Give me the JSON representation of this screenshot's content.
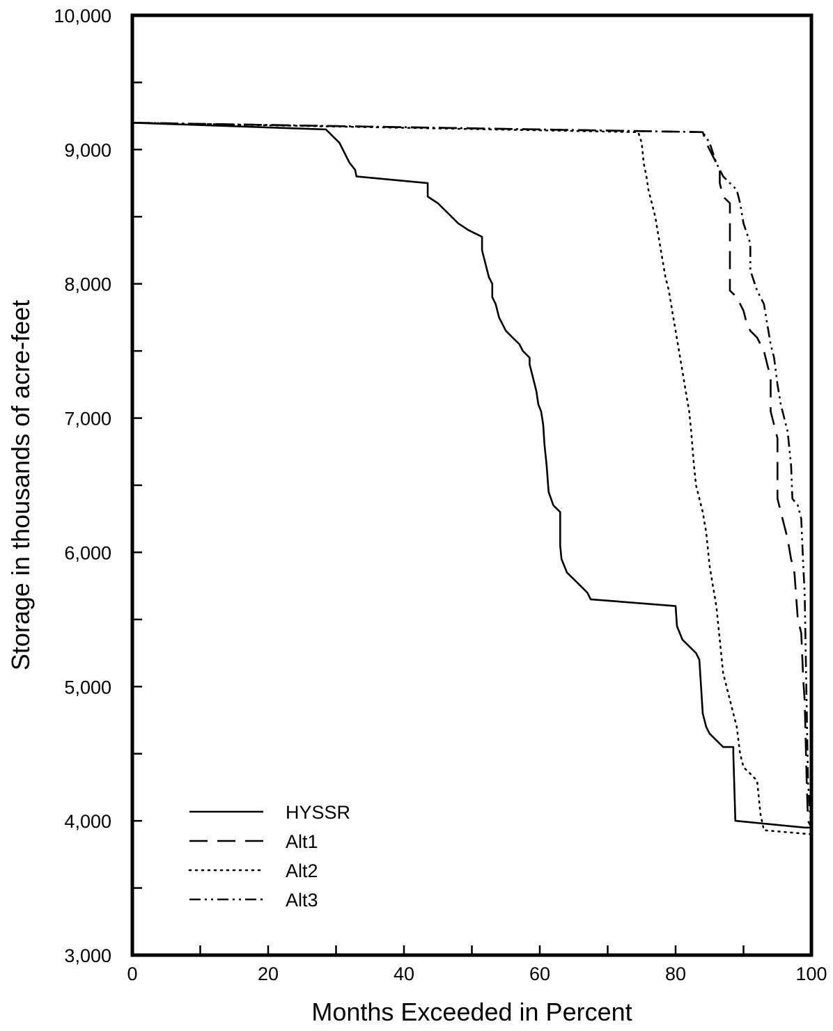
{
  "chart_data": {
    "type": "line",
    "title": "",
    "xlabel": "Months Exceeded in Percent",
    "ylabel": "Storage in thousands of acre-feet",
    "xlim": [
      0,
      100
    ],
    "ylim": [
      3000,
      10000
    ],
    "x_ticks": [
      0,
      20,
      40,
      60,
      80,
      100
    ],
    "x_tick_labels": [
      "0",
      "20",
      "40",
      "60",
      "80",
      "100"
    ],
    "x_minor_ticks": [
      10,
      30,
      50,
      70,
      90
    ],
    "y_ticks": [
      3000,
      4000,
      5000,
      6000,
      7000,
      8000,
      9000,
      10000
    ],
    "y_tick_labels": [
      "3,000",
      "4,000",
      "5,000",
      "6,000",
      "7,000",
      "8,000",
      "9,000",
      "10,000"
    ],
    "y_minor_ticks": [
      3500,
      4500,
      5500,
      6500,
      7500,
      8500,
      9500
    ],
    "grid": false,
    "legend_position": "bottom-left",
    "series": [
      {
        "name": "HYSSR",
        "dash": "solid",
        "points": [
          [
            0,
            9200
          ],
          [
            28.5,
            9150
          ],
          [
            29.5,
            9100
          ],
          [
            30.5,
            9050
          ],
          [
            31,
            9000
          ],
          [
            31.5,
            8950
          ],
          [
            32,
            8900
          ],
          [
            32.8,
            8850
          ],
          [
            33,
            8800
          ],
          [
            43.5,
            8750
          ],
          [
            43.5,
            8650
          ],
          [
            45,
            8600
          ],
          [
            46,
            8550
          ],
          [
            47,
            8500
          ],
          [
            48,
            8450
          ],
          [
            49.5,
            8400
          ],
          [
            51.5,
            8350
          ],
          [
            51.5,
            8250
          ],
          [
            52,
            8150
          ],
          [
            52.5,
            8050
          ],
          [
            53,
            8000
          ],
          [
            53,
            7900
          ],
          [
            53.5,
            7850
          ],
          [
            54,
            7750
          ],
          [
            54.5,
            7700
          ],
          [
            55,
            7650
          ],
          [
            56,
            7600
          ],
          [
            57,
            7550
          ],
          [
            57.5,
            7500
          ],
          [
            58.5,
            7450
          ],
          [
            58.5,
            7400
          ],
          [
            59,
            7300
          ],
          [
            59.5,
            7200
          ],
          [
            59.8,
            7100
          ],
          [
            60.2,
            7050
          ],
          [
            60.5,
            6950
          ],
          [
            60.7,
            6800
          ],
          [
            61,
            6650
          ],
          [
            61.3,
            6450
          ],
          [
            62,
            6350
          ],
          [
            63,
            6300
          ],
          [
            63,
            6050
          ],
          [
            63.2,
            5950
          ],
          [
            64,
            5850
          ],
          [
            65,
            5800
          ],
          [
            66,
            5750
          ],
          [
            67,
            5700
          ],
          [
            67.5,
            5650
          ],
          [
            80,
            5600
          ],
          [
            80.2,
            5450
          ],
          [
            81,
            5350
          ],
          [
            82,
            5300
          ],
          [
            83,
            5250
          ],
          [
            83.5,
            5200
          ],
          [
            84,
            4800
          ],
          [
            84.5,
            4700
          ],
          [
            85,
            4650
          ],
          [
            86,
            4600
          ],
          [
            87,
            4550
          ],
          [
            88.5,
            4550
          ],
          [
            88.5,
            4500
          ],
          [
            88.8,
            4000
          ],
          [
            99,
            3950
          ],
          [
            99.2,
            3950
          ],
          [
            99.5,
            3950
          ],
          [
            100,
            3950
          ]
        ]
      },
      {
        "name": "Alt1",
        "dash": "long-dash",
        "points": [
          [
            0,
            9200
          ],
          [
            84,
            9130
          ],
          [
            84.5,
            9050
          ],
          [
            85,
            9000
          ],
          [
            85.5,
            8950
          ],
          [
            86,
            8900
          ],
          [
            86.5,
            8850
          ],
          [
            86.5,
            8750
          ],
          [
            87,
            8650
          ],
          [
            88,
            8600
          ],
          [
            88,
            7950
          ],
          [
            89,
            7900
          ],
          [
            90,
            7800
          ],
          [
            90.5,
            7700
          ],
          [
            91,
            7650
          ],
          [
            92,
            7600
          ],
          [
            93,
            7500
          ],
          [
            93.5,
            7400
          ],
          [
            94,
            7300
          ],
          [
            94,
            7050
          ],
          [
            94.5,
            6950
          ],
          [
            95,
            6850
          ],
          [
            95,
            6400
          ],
          [
            95.5,
            6300
          ],
          [
            96,
            6200
          ],
          [
            96.5,
            6100
          ],
          [
            97,
            5950
          ],
          [
            97.5,
            5850
          ],
          [
            98,
            5500
          ],
          [
            98.5,
            5400
          ],
          [
            98.8,
            5050
          ],
          [
            99,
            4900
          ],
          [
            99.3,
            4300
          ],
          [
            99.5,
            4000
          ],
          [
            100,
            3950
          ]
        ]
      },
      {
        "name": "Alt2",
        "dash": "dotted",
        "points": [
          [
            0,
            9200
          ],
          [
            74.5,
            9130
          ],
          [
            75,
            9050
          ],
          [
            75.3,
            8900
          ],
          [
            75.7,
            8800
          ],
          [
            76,
            8700
          ],
          [
            76.5,
            8600
          ],
          [
            77,
            8500
          ],
          [
            77.5,
            8350
          ],
          [
            78,
            8200
          ],
          [
            78.5,
            8050
          ],
          [
            79,
            7950
          ],
          [
            79.5,
            7800
          ],
          [
            80,
            7650
          ],
          [
            80.5,
            7500
          ],
          [
            81,
            7350
          ],
          [
            81.5,
            7200
          ],
          [
            82,
            7050
          ],
          [
            82.3,
            6900
          ],
          [
            82.7,
            6650
          ],
          [
            83,
            6500
          ],
          [
            84,
            6300
          ],
          [
            84.5,
            6150
          ],
          [
            85,
            5900
          ],
          [
            85.5,
            5750
          ],
          [
            86,
            5600
          ],
          [
            86.5,
            5350
          ],
          [
            87,
            5100
          ],
          [
            88,
            4900
          ],
          [
            88.5,
            4800
          ],
          [
            89,
            4700
          ],
          [
            89.5,
            4500
          ],
          [
            90,
            4400
          ],
          [
            91,
            4350
          ],
          [
            92,
            4300
          ],
          [
            92.5,
            4050
          ],
          [
            93,
            3930
          ],
          [
            100,
            3900
          ]
        ]
      },
      {
        "name": "Alt3",
        "dash": "dash-dot-dot",
        "points": [
          [
            0,
            9200
          ],
          [
            84,
            9130
          ],
          [
            85,
            9050
          ],
          [
            86,
            8900
          ],
          [
            87,
            8800
          ],
          [
            88,
            8750
          ],
          [
            89,
            8700
          ],
          [
            89.5,
            8600
          ],
          [
            90,
            8450
          ],
          [
            91,
            8300
          ],
          [
            91,
            8100
          ],
          [
            92,
            7950
          ],
          [
            93,
            7850
          ],
          [
            93.5,
            7700
          ],
          [
            94,
            7550
          ],
          [
            94.5,
            7450
          ],
          [
            95,
            7250
          ],
          [
            95.5,
            7100
          ],
          [
            96,
            7000
          ],
          [
            96.5,
            6900
          ],
          [
            97,
            6650
          ],
          [
            97.2,
            6400
          ],
          [
            98,
            6350
          ],
          [
            98.5,
            6250
          ],
          [
            98.8,
            5900
          ],
          [
            99,
            5700
          ],
          [
            99.5,
            4300
          ],
          [
            99.8,
            4050
          ],
          [
            100,
            3950
          ]
        ]
      }
    ]
  }
}
